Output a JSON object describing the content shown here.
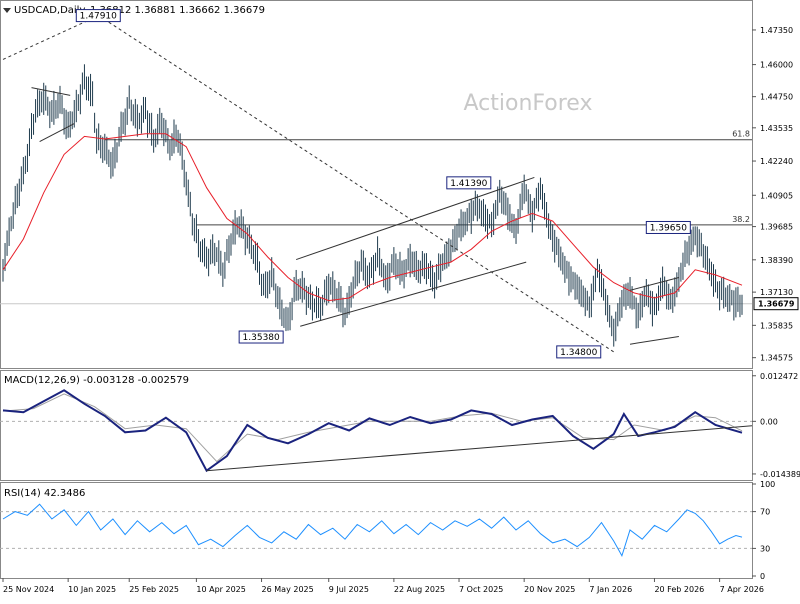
{
  "header": {
    "symbol": "USDCAD,Daily",
    "ohlc": "1.36812 1.36881 1.36662 1.36679"
  },
  "watermark": "ActionForex",
  "colors": {
    "price": "#1f3b4d",
    "ma": "#e8202a",
    "macd": "#1a237e",
    "signal": "#a0a0a0",
    "rsi": "#1e90ff",
    "grid_dash": "#b0b0b0",
    "trend": "#333333",
    "label_border": "#1a237e"
  },
  "chart_data": [
    {
      "type": "line",
      "panel": "price",
      "ylim": [
        1.3425,
        1.4805
      ],
      "price_ticks": [
        "1.47350",
        "1.46000",
        "1.44750",
        "1.43535",
        "1.42240",
        "1.40905",
        "1.39685",
        "1.38390",
        "1.37130",
        "1.35835",
        "1.34575"
      ],
      "x_labels": [
        "25 Nov 2024",
        "10 Jan 2025",
        "25 Feb 2025",
        "10 Apr 2025",
        "26 May 2025",
        "9 Jul 2025",
        "22 Aug 2025",
        "7 Oct 2025",
        "20 Nov 2025",
        "7 Jan 2026",
        "20 Feb 2026",
        "7 Apr 2026"
      ],
      "last_price": "1.36679",
      "annotations": [
        "1.47910",
        "1.41390",
        "1.39650",
        "1.35380",
        "1.34800"
      ],
      "fib_levels": [
        {
          "label": "61.8",
          "value": 1.4307
        },
        {
          "label": "38.2",
          "value": 1.3975
        }
      ],
      "close_series": [
        [
          0,
          1.382
        ],
        [
          4,
          1.398
        ],
        [
          8,
          1.412
        ],
        [
          12,
          1.425
        ],
        [
          16,
          1.442
        ],
        [
          20,
          1.448
        ],
        [
          24,
          1.44
        ],
        [
          28,
          1.446
        ],
        [
          32,
          1.435
        ],
        [
          36,
          1.442
        ],
        [
          40,
          1.455
        ],
        [
          44,
          1.447
        ],
        [
          46,
          1.43
        ],
        [
          50,
          1.428
        ],
        [
          54,
          1.42
        ],
        [
          58,
          1.435
        ],
        [
          62,
          1.445
        ],
        [
          66,
          1.437
        ],
        [
          70,
          1.443
        ],
        [
          74,
          1.43
        ],
        [
          78,
          1.438
        ],
        [
          82,
          1.428
        ],
        [
          86,
          1.432
        ],
        [
          90,
          1.415
        ],
        [
          93,
          1.399
        ],
        [
          96,
          1.39
        ],
        [
          100,
          1.385
        ],
        [
          104,
          1.387
        ],
        [
          108,
          1.38
        ],
        [
          112,
          1.392
        ],
        [
          116,
          1.398
        ],
        [
          120,
          1.393
        ],
        [
          124,
          1.385
        ],
        [
          128,
          1.373
        ],
        [
          132,
          1.378
        ],
        [
          136,
          1.365
        ],
        [
          140,
          1.36
        ],
        [
          144,
          1.373
        ],
        [
          148,
          1.372
        ],
        [
          152,
          1.367
        ],
        [
          156,
          1.365
        ],
        [
          160,
          1.375
        ],
        [
          164,
          1.37
        ],
        [
          168,
          1.363
        ],
        [
          172,
          1.374
        ],
        [
          176,
          1.382
        ],
        [
          180,
          1.378
        ],
        [
          184,
          1.385
        ],
        [
          188,
          1.376
        ],
        [
          192,
          1.383
        ],
        [
          196,
          1.378
        ],
        [
          200,
          1.385
        ],
        [
          204,
          1.379
        ],
        [
          208,
          1.382
        ],
        [
          212,
          1.375
        ],
        [
          216,
          1.383
        ],
        [
          220,
          1.389
        ],
        [
          224,
          1.395
        ],
        [
          228,
          1.4
        ],
        [
          232,
          1.405
        ],
        [
          236,
          1.401
        ],
        [
          240,
          1.398
        ],
        [
          244,
          1.409
        ],
        [
          248,
          1.403
        ],
        [
          252,
          1.395
        ],
        [
          256,
          1.412
        ],
        [
          260,
          1.402
        ],
        [
          264,
          1.411
        ],
        [
          268,
          1.398
        ],
        [
          272,
          1.388
        ],
        [
          276,
          1.38
        ],
        [
          280,
          1.376
        ],
        [
          284,
          1.37
        ],
        [
          288,
          1.366
        ],
        [
          292,
          1.38
        ],
        [
          296,
          1.368
        ],
        [
          300,
          1.356
        ],
        [
          304,
          1.367
        ],
        [
          308,
          1.372
        ],
        [
          312,
          1.362
        ],
        [
          316,
          1.371
        ],
        [
          320,
          1.365
        ],
        [
          324,
          1.374
        ],
        [
          328,
          1.368
        ],
        [
          332,
          1.376
        ],
        [
          336,
          1.387
        ],
        [
          340,
          1.394
        ],
        [
          344,
          1.386
        ],
        [
          348,
          1.379
        ],
        [
          352,
          1.371
        ],
        [
          356,
          1.369
        ],
        [
          360,
          1.368
        ],
        [
          363,
          1.366
        ]
      ],
      "ma_series": [
        [
          0,
          1.38
        ],
        [
          10,
          1.392
        ],
        [
          20,
          1.41
        ],
        [
          30,
          1.425
        ],
        [
          40,
          1.432
        ],
        [
          50,
          1.431
        ],
        [
          60,
          1.432
        ],
        [
          70,
          1.433
        ],
        [
          80,
          1.433
        ],
        [
          90,
          1.428
        ],
        [
          100,
          1.412
        ],
        [
          110,
          1.4
        ],
        [
          120,
          1.394
        ],
        [
          130,
          1.385
        ],
        [
          140,
          1.377
        ],
        [
          150,
          1.371
        ],
        [
          160,
          1.368
        ],
        [
          170,
          1.369
        ],
        [
          180,
          1.374
        ],
        [
          190,
          1.377
        ],
        [
          200,
          1.379
        ],
        [
          210,
          1.381
        ],
        [
          220,
          1.383
        ],
        [
          230,
          1.388
        ],
        [
          240,
          1.395
        ],
        [
          250,
          1.399
        ],
        [
          260,
          1.402
        ],
        [
          270,
          1.399
        ],
        [
          280,
          1.39
        ],
        [
          290,
          1.381
        ],
        [
          300,
          1.375
        ],
        [
          310,
          1.371
        ],
        [
          320,
          1.369
        ],
        [
          330,
          1.371
        ],
        [
          340,
          1.38
        ],
        [
          350,
          1.378
        ],
        [
          363,
          1.374
        ]
      ]
    },
    {
      "type": "line",
      "panel": "macd",
      "title": "MACD(12,26,9) -0.003128 -0.002579",
      "ylim": [
        -0.0155,
        0.0135
      ],
      "ticks": [
        "0.012472",
        "0.00",
        "-0.014389"
      ],
      "macd_series": [
        [
          0,
          0.003
        ],
        [
          10,
          0.0025
        ],
        [
          20,
          0.0055
        ],
        [
          30,
          0.0085
        ],
        [
          40,
          0.0048
        ],
        [
          50,
          0.0015
        ],
        [
          60,
          -0.003
        ],
        [
          70,
          -0.0025
        ],
        [
          80,
          0.001
        ],
        [
          90,
          -0.003
        ],
        [
          100,
          -0.0135
        ],
        [
          110,
          -0.0095
        ],
        [
          120,
          -0.001
        ],
        [
          130,
          -0.0045
        ],
        [
          140,
          -0.006
        ],
        [
          150,
          -0.0035
        ],
        [
          160,
          -0.0005
        ],
        [
          170,
          -0.0025
        ],
        [
          180,
          0.0008
        ],
        [
          190,
          -0.001
        ],
        [
          200,
          0.0012
        ],
        [
          210,
          -0.0005
        ],
        [
          220,
          0.0005
        ],
        [
          230,
          0.003
        ],
        [
          240,
          0.002
        ],
        [
          250,
          -0.001
        ],
        [
          260,
          0.0005
        ],
        [
          270,
          0.0015
        ],
        [
          280,
          -0.004
        ],
        [
          290,
          -0.0075
        ],
        [
          300,
          -0.0035
        ],
        [
          305,
          0.002
        ],
        [
          312,
          -0.004
        ],
        [
          320,
          -0.003
        ],
        [
          330,
          -0.0015
        ],
        [
          340,
          0.0025
        ],
        [
          350,
          -0.001
        ],
        [
          363,
          -0.0031
        ]
      ],
      "signal_series": [
        [
          0,
          0.0028
        ],
        [
          15,
          0.0035
        ],
        [
          30,
          0.0075
        ],
        [
          45,
          0.004
        ],
        [
          60,
          -0.002
        ],
        [
          75,
          -0.001
        ],
        [
          90,
          -0.002
        ],
        [
          105,
          -0.011
        ],
        [
          120,
          -0.0035
        ],
        [
          135,
          -0.005
        ],
        [
          150,
          -0.003
        ],
        [
          165,
          -0.0015
        ],
        [
          180,
          0.0
        ],
        [
          195,
          0.0
        ],
        [
          210,
          0.0
        ],
        [
          225,
          0.0015
        ],
        [
          240,
          0.0022
        ],
        [
          255,
          0.0
        ],
        [
          270,
          0.001
        ],
        [
          285,
          -0.0045
        ],
        [
          300,
          -0.005
        ],
        [
          310,
          -0.001
        ],
        [
          325,
          -0.0025
        ],
        [
          340,
          0.0015
        ],
        [
          350,
          0.001
        ],
        [
          363,
          -0.0026
        ]
      ]
    },
    {
      "type": "line",
      "panel": "rsi",
      "title": "RSI(14) 42.3486",
      "ylim": [
        0,
        100
      ],
      "ticks": [
        "100",
        "70",
        "30",
        "0"
      ],
      "levels": [
        70,
        30
      ],
      "rsi_series": [
        [
          0,
          62
        ],
        [
          6,
          70
        ],
        [
          12,
          66
        ],
        [
          18,
          78
        ],
        [
          24,
          62
        ],
        [
          30,
          72
        ],
        [
          36,
          55
        ],
        [
          42,
          70
        ],
        [
          48,
          50
        ],
        [
          54,
          62
        ],
        [
          60,
          45
        ],
        [
          66,
          60
        ],
        [
          72,
          48
        ],
        [
          78,
          58
        ],
        [
          84,
          46
        ],
        [
          90,
          55
        ],
        [
          96,
          34
        ],
        [
          102,
          40
        ],
        [
          108,
          32
        ],
        [
          114,
          44
        ],
        [
          120,
          55
        ],
        [
          126,
          42
        ],
        [
          132,
          36
        ],
        [
          138,
          48
        ],
        [
          144,
          40
        ],
        [
          150,
          56
        ],
        [
          156,
          45
        ],
        [
          162,
          52
        ],
        [
          168,
          40
        ],
        [
          174,
          56
        ],
        [
          180,
          48
        ],
        [
          186,
          60
        ],
        [
          192,
          46
        ],
        [
          198,
          56
        ],
        [
          204,
          45
        ],
        [
          210,
          58
        ],
        [
          216,
          50
        ],
        [
          222,
          60
        ],
        [
          228,
          54
        ],
        [
          234,
          62
        ],
        [
          240,
          52
        ],
        [
          246,
          64
        ],
        [
          252,
          50
        ],
        [
          258,
          60
        ],
        [
          264,
          46
        ],
        [
          270,
          36
        ],
        [
          276,
          40
        ],
        [
          282,
          32
        ],
        [
          288,
          42
        ],
        [
          294,
          58
        ],
        [
          300,
          38
        ],
        [
          304,
          22
        ],
        [
          308,
          50
        ],
        [
          314,
          40
        ],
        [
          320,
          55
        ],
        [
          326,
          48
        ],
        [
          332,
          62
        ],
        [
          336,
          72
        ],
        [
          340,
          68
        ],
        [
          344,
          60
        ],
        [
          348,
          48
        ],
        [
          352,
          35
        ],
        [
          356,
          40
        ],
        [
          360,
          44
        ],
        [
          363,
          42.3
        ]
      ]
    }
  ]
}
